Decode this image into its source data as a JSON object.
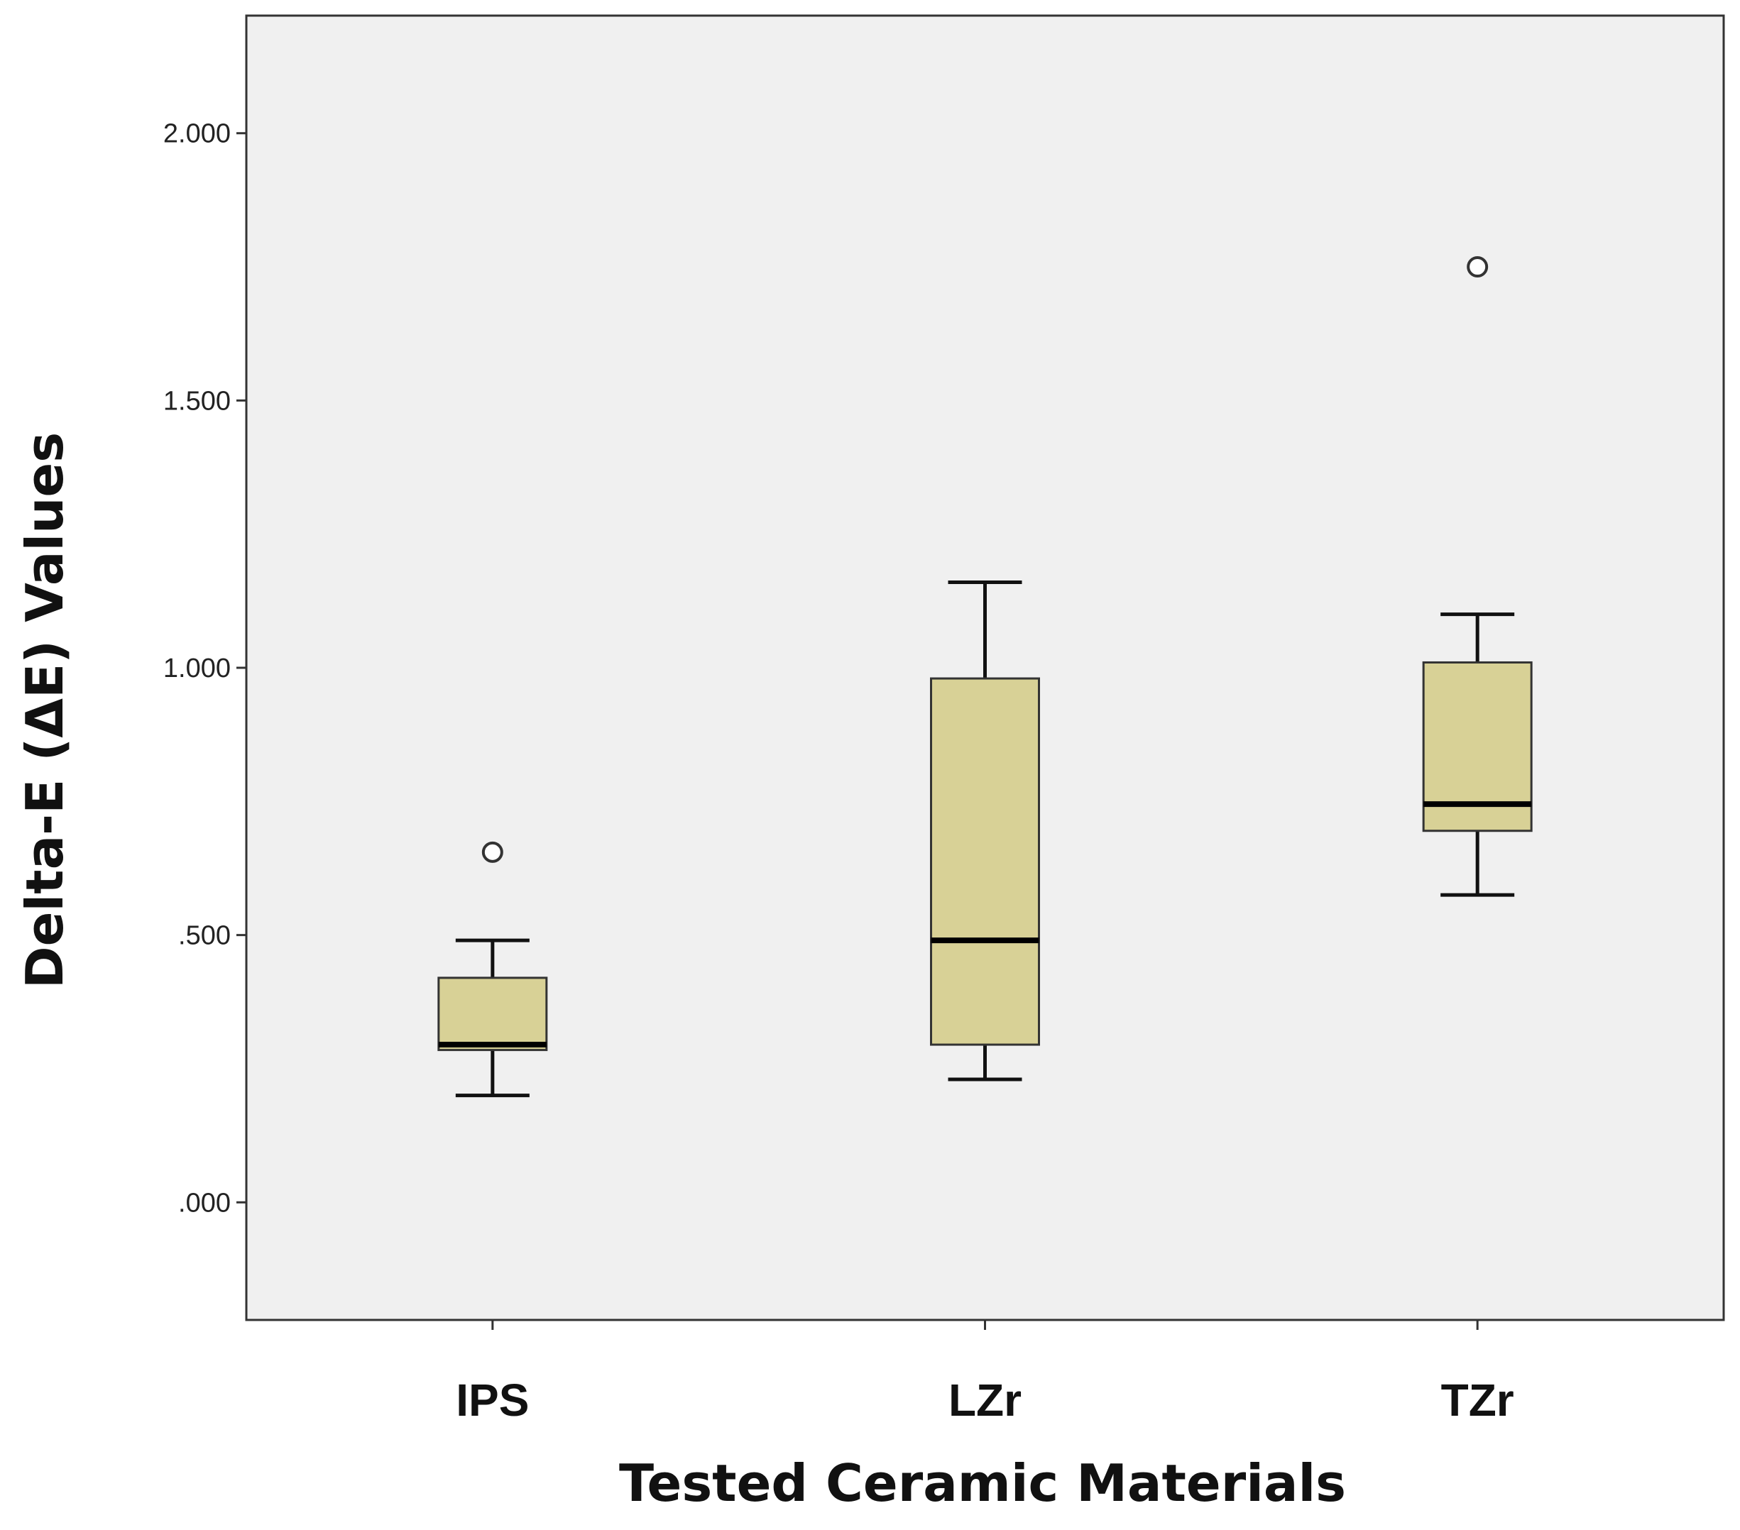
{
  "chart_data": {
    "type": "box",
    "xlabel": "Tested Ceramic Materials",
    "ylabel": "Delta-E (ΔE) Values",
    "ylim": [
      -0.22,
      2.22
    ],
    "yticks": [
      0,
      0.5,
      1.0,
      1.5,
      2.0
    ],
    "ytick_labels": [
      ".000",
      ".500",
      "1.000",
      "1.500",
      "2.000"
    ],
    "categories": [
      "IPS",
      "LZr",
      "TZr"
    ],
    "boxes": [
      {
        "label": "IPS",
        "whisker_low": 0.2,
        "q1": 0.285,
        "median": 0.295,
        "q3": 0.42,
        "whisker_high": 0.49,
        "outliers": [
          0.655
        ]
      },
      {
        "label": "LZr",
        "whisker_low": 0.23,
        "q1": 0.295,
        "median": 0.49,
        "q3": 0.98,
        "whisker_high": 1.16,
        "outliers": []
      },
      {
        "label": "TZr",
        "whisker_low": 0.575,
        "q1": 0.695,
        "median": 0.745,
        "q3": 1.01,
        "whisker_high": 1.1,
        "outliers": [
          1.75
        ]
      }
    ],
    "grid": false,
    "colors": {
      "plot_background": "#f0f0f0",
      "box_fill": "#d8d196",
      "box_stroke": "#333333",
      "median": "#000000",
      "outlier_stroke": "#333333"
    }
  }
}
